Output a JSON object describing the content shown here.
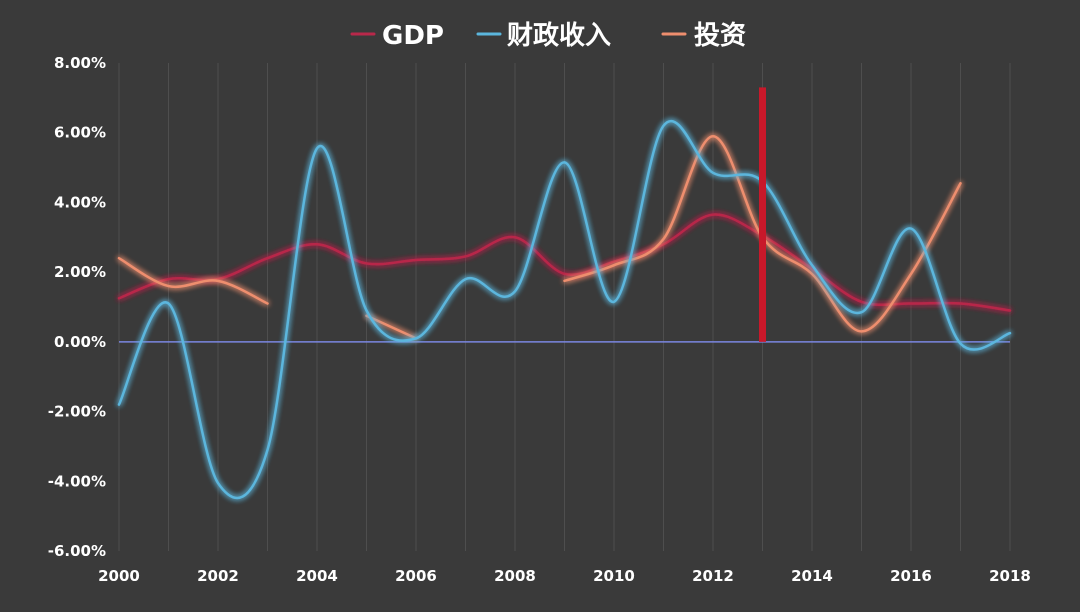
{
  "chart_data": {
    "type": "line",
    "title": "",
    "xlabel": "",
    "ylabel": "",
    "xlim": [
      2000,
      2018
    ],
    "ylim": [
      -6,
      8
    ],
    "y_ticks": [
      8,
      6,
      4,
      2,
      0,
      -2,
      -4,
      -6
    ],
    "y_tick_labels": [
      "8.00%",
      "6.00%",
      "4.00%",
      "2.00%",
      "0.00%",
      "-2.00%",
      "-4.00%",
      "-6.00%"
    ],
    "x_ticks": [
      2000,
      2002,
      2004,
      2006,
      2008,
      2010,
      2012,
      2014,
      2016,
      2018
    ],
    "x_tick_labels": [
      "2000",
      "2002",
      "2004",
      "2006",
      "2008",
      "2010",
      "2012",
      "2014",
      "2016",
      "2018"
    ],
    "grid": "vertical",
    "legend": "top-center",
    "background": "#3a3a3a",
    "zero_line_color": "#7b86e0",
    "series": [
      {
        "name": "GDP",
        "color": "#b8284a",
        "points": [
          [
            2000,
            1.25
          ],
          [
            2001,
            1.8
          ],
          [
            2002,
            1.8
          ],
          [
            2003,
            2.4
          ],
          [
            2004,
            2.8
          ],
          [
            2005,
            2.25
          ],
          [
            2006,
            2.35
          ],
          [
            2007,
            2.45
          ],
          [
            2008,
            3.0
          ],
          [
            2009,
            1.95
          ],
          [
            2010,
            2.3
          ],
          [
            2011,
            2.8
          ],
          [
            2012,
            3.65
          ],
          [
            2013,
            3.05
          ],
          [
            2014,
            2.1
          ],
          [
            2015,
            1.15
          ],
          [
            2016,
            1.1
          ],
          [
            2017,
            1.1
          ],
          [
            2018,
            0.9
          ]
        ]
      },
      {
        "name": "财政收入",
        "color": "#5bb6dd",
        "points": [
          [
            2000,
            -1.8
          ],
          [
            2001,
            1.1
          ],
          [
            2002,
            -4.05
          ],
          [
            2003,
            -3.1
          ],
          [
            2004,
            5.55
          ],
          [
            2005,
            0.9
          ],
          [
            2006,
            0.1
          ],
          [
            2007,
            1.8
          ],
          [
            2008,
            1.45
          ],
          [
            2009,
            5.15
          ],
          [
            2010,
            1.15
          ],
          [
            2011,
            6.2
          ],
          [
            2012,
            4.85
          ],
          [
            2013,
            4.6
          ],
          [
            2014,
            2.2
          ],
          [
            2015,
            0.85
          ],
          [
            2016,
            3.25
          ],
          [
            2017,
            -0.05
          ],
          [
            2018,
            0.25
          ]
        ]
      },
      {
        "name": "投资",
        "color": "#ee8e6e",
        "segments": [
          [
            [
              2000,
              2.4
            ],
            [
              2001,
              1.6
            ],
            [
              2002,
              1.75
            ],
            [
              2003,
              1.1
            ]
          ],
          [
            [
              2005,
              0.75
            ],
            [
              2006,
              0.1
            ]
          ],
          [
            [
              2009,
              1.75
            ],
            [
              2010,
              2.2
            ],
            [
              2011,
              2.95
            ],
            [
              2012,
              5.9
            ],
            [
              2013,
              3.0
            ],
            [
              2014,
              1.95
            ],
            [
              2015,
              0.3
            ],
            [
              2016,
              1.95
            ],
            [
              2017,
              4.55
            ]
          ]
        ]
      }
    ],
    "vertical_marker": {
      "x": 2013,
      "y_top": 7.3,
      "y_bottom": 0,
      "color": "#c8182a"
    }
  }
}
